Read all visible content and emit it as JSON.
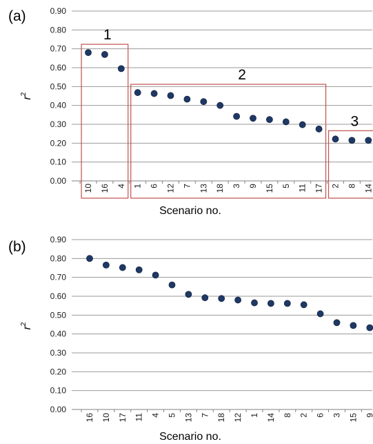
{
  "chart_data": [
    {
      "type": "scatter",
      "panel_label": "(a)",
      "xlabel": "Scenario no.",
      "ylabel": "r",
      "ylabel_sup": "2",
      "ylim": [
        0,
        0.9
      ],
      "yticks": [
        "0.00",
        "0.10",
        "0.20",
        "0.30",
        "0.40",
        "0.50",
        "0.60",
        "0.70",
        "0.80",
        "0.90"
      ],
      "grid": true,
      "categories": [
        "10",
        "16",
        "4",
        "1",
        "6",
        "12",
        "7",
        "13",
        "18",
        "3",
        "9",
        "15",
        "5",
        "11",
        "17",
        "2",
        "8",
        "14"
      ],
      "values": [
        0.68,
        0.67,
        0.595,
        0.468,
        0.463,
        0.452,
        0.433,
        0.42,
        0.4,
        0.342,
        0.332,
        0.325,
        0.313,
        0.298,
        0.275,
        0.222,
        0.215,
        0.215
      ],
      "marker_color": "#1f3864",
      "groups": [
        {
          "label": "1",
          "first": 0,
          "last": 2
        },
        {
          "label": "2",
          "first": 3,
          "last": 14
        },
        {
          "label": "3",
          "first": 15,
          "last": 17
        }
      ],
      "group_box_color": "#c0504d"
    },
    {
      "type": "scatter",
      "panel_label": "(b)",
      "xlabel": "Scenario no.",
      "ylabel": "r",
      "ylabel_sup": "2",
      "ylim": [
        0,
        0.9
      ],
      "yticks": [
        "0.00",
        "0.10",
        "0.20",
        "0.30",
        "0.40",
        "0.50",
        "0.60",
        "0.70",
        "0.80",
        "0.90"
      ],
      "grid": true,
      "categories": [
        "16",
        "10",
        "17",
        "11",
        "4",
        "5",
        "13",
        "7",
        "18",
        "12",
        "1",
        "14",
        "8",
        "2",
        "6",
        "3",
        "15",
        "9"
      ],
      "values": [
        0.8,
        0.765,
        0.752,
        0.74,
        0.712,
        0.66,
        0.61,
        0.592,
        0.588,
        0.58,
        0.565,
        0.562,
        0.562,
        0.555,
        0.507,
        0.46,
        0.445,
        0.433
      ],
      "marker_color": "#1f3864"
    }
  ]
}
